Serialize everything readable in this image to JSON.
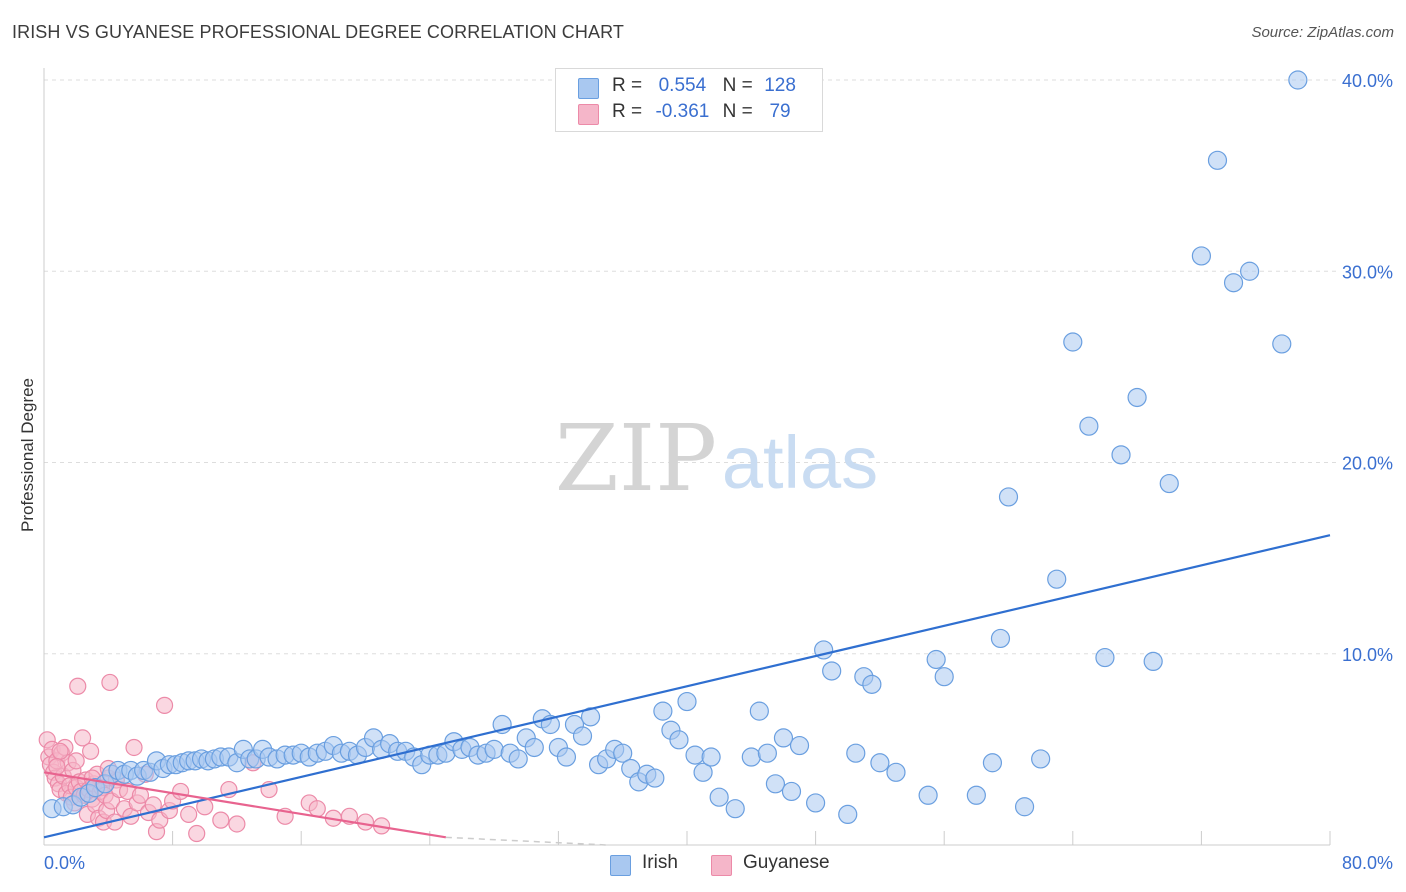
{
  "title": "IRISH VS GUYANESE PROFESSIONAL DEGREE CORRELATION CHART",
  "source": "Source: ZipAtlas.com",
  "watermark": {
    "zip": "ZIP",
    "atlas": "atlas"
  },
  "colors": {
    "irish_fill": "#a9c8f0",
    "irish_stroke": "#6a9fe0",
    "irish_line": "#2f6fd0",
    "guyanese_fill": "#f5b6c9",
    "guyanese_stroke": "#ec8aa8",
    "guyanese_line": "#e8638f",
    "grid": "#dddddd",
    "tick_label": "#3a6fd0"
  },
  "legend": {
    "rows": [
      {
        "r_label": "R =",
        "r_value": "0.554",
        "n_label": "N =",
        "n_value": "128"
      },
      {
        "r_label": "R =",
        "r_value": "-0.361",
        "n_label": "N =",
        "n_value": "79"
      }
    ]
  },
  "bottom_legend": {
    "items": [
      "Irish",
      "Guyanese"
    ]
  },
  "chart_data": {
    "type": "scatter",
    "title": "IRISH VS GUYANESE PROFESSIONAL DEGREE CORRELATION CHART",
    "xlabel": "",
    "ylabel": "Professional Degree",
    "xlim": [
      0,
      80
    ],
    "ylim": [
      0,
      40
    ],
    "x_tick_labels": [
      "0.0%",
      "80.0%"
    ],
    "y_ticks": [
      10,
      20,
      30,
      40
    ],
    "y_tick_labels": [
      "10.0%",
      "20.0%",
      "30.0%",
      "40.0%"
    ],
    "grid": true,
    "legend_position": "top-center",
    "series": [
      {
        "name": "Irish",
        "r": 0.554,
        "n": 128,
        "trend": {
          "x": [
            0,
            80
          ],
          "y": [
            0.4,
            16.2
          ]
        },
        "points": [
          [
            0.5,
            1.9
          ],
          [
            1.2,
            2.0
          ],
          [
            1.8,
            2.1
          ],
          [
            2.3,
            2.5
          ],
          [
            2.8,
            2.7
          ],
          [
            3.2,
            3.0
          ],
          [
            3.8,
            3.2
          ],
          [
            4.2,
            3.7
          ],
          [
            4.6,
            3.9
          ],
          [
            5.0,
            3.7
          ],
          [
            5.4,
            3.9
          ],
          [
            5.8,
            3.6
          ],
          [
            6.2,
            3.9
          ],
          [
            6.6,
            3.8
          ],
          [
            7.0,
            4.4
          ],
          [
            7.4,
            4.0
          ],
          [
            7.8,
            4.2
          ],
          [
            8.2,
            4.2
          ],
          [
            8.6,
            4.3
          ],
          [
            9.0,
            4.4
          ],
          [
            9.4,
            4.4
          ],
          [
            9.8,
            4.5
          ],
          [
            10.2,
            4.4
          ],
          [
            10.6,
            4.5
          ],
          [
            11.0,
            4.6
          ],
          [
            11.5,
            4.6
          ],
          [
            12.0,
            4.3
          ],
          [
            12.4,
            5.0
          ],
          [
            12.8,
            4.5
          ],
          [
            13.2,
            4.5
          ],
          [
            13.6,
            5.0
          ],
          [
            14.0,
            4.6
          ],
          [
            14.5,
            4.5
          ],
          [
            15.0,
            4.7
          ],
          [
            15.5,
            4.7
          ],
          [
            16.0,
            4.8
          ],
          [
            16.5,
            4.6
          ],
          [
            17.0,
            4.8
          ],
          [
            17.5,
            4.9
          ],
          [
            18.0,
            5.2
          ],
          [
            18.5,
            4.8
          ],
          [
            19.0,
            4.9
          ],
          [
            19.5,
            4.7
          ],
          [
            20.0,
            5.1
          ],
          [
            20.5,
            5.6
          ],
          [
            21.0,
            5.0
          ],
          [
            21.5,
            5.3
          ],
          [
            22.0,
            4.9
          ],
          [
            22.5,
            4.9
          ],
          [
            23.0,
            4.6
          ],
          [
            23.5,
            4.2
          ],
          [
            24.0,
            4.7
          ],
          [
            24.5,
            4.7
          ],
          [
            25.0,
            4.8
          ],
          [
            25.5,
            5.4
          ],
          [
            26.0,
            5.0
          ],
          [
            26.5,
            5.1
          ],
          [
            27.0,
            4.7
          ],
          [
            27.5,
            4.8
          ],
          [
            28.0,
            5.0
          ],
          [
            28.5,
            6.3
          ],
          [
            29.0,
            4.8
          ],
          [
            29.5,
            4.5
          ],
          [
            30.0,
            5.6
          ],
          [
            30.5,
            5.1
          ],
          [
            31.0,
            6.6
          ],
          [
            31.5,
            6.3
          ],
          [
            32.0,
            5.1
          ],
          [
            32.5,
            4.6
          ],
          [
            33.0,
            6.3
          ],
          [
            33.5,
            5.7
          ],
          [
            34.0,
            6.7
          ],
          [
            34.5,
            4.2
          ],
          [
            35.0,
            4.5
          ],
          [
            35.5,
            5.0
          ],
          [
            36.0,
            4.8
          ],
          [
            36.5,
            4.0
          ],
          [
            37.0,
            3.3
          ],
          [
            37.5,
            3.7
          ],
          [
            38.0,
            3.5
          ],
          [
            38.5,
            7.0
          ],
          [
            39.0,
            6.0
          ],
          [
            39.5,
            5.5
          ],
          [
            40.0,
            7.5
          ],
          [
            40.5,
            4.7
          ],
          [
            41.0,
            3.8
          ],
          [
            41.5,
            4.6
          ],
          [
            42.0,
            2.5
          ],
          [
            43.0,
            1.9
          ],
          [
            44.0,
            4.6
          ],
          [
            44.5,
            7.0
          ],
          [
            45.0,
            4.8
          ],
          [
            45.5,
            3.2
          ],
          [
            46.0,
            5.6
          ],
          [
            46.5,
            2.8
          ],
          [
            47.0,
            5.2
          ],
          [
            48.0,
            2.2
          ],
          [
            48.5,
            10.2
          ],
          [
            49.0,
            9.1
          ],
          [
            50.0,
            1.6
          ],
          [
            50.5,
            4.8
          ],
          [
            51.0,
            8.8
          ],
          [
            51.5,
            8.4
          ],
          [
            52.0,
            4.3
          ],
          [
            53.0,
            3.8
          ],
          [
            55.0,
            2.6
          ],
          [
            55.5,
            9.7
          ],
          [
            56.0,
            8.8
          ],
          [
            58.0,
            2.6
          ],
          [
            59.0,
            4.3
          ],
          [
            59.5,
            10.8
          ],
          [
            60.0,
            18.2
          ],
          [
            61.0,
            2.0
          ],
          [
            62.0,
            4.5
          ],
          [
            63.0,
            13.9
          ],
          [
            64.0,
            26.3
          ],
          [
            65.0,
            21.9
          ],
          [
            66.0,
            9.8
          ],
          [
            67.0,
            20.4
          ],
          [
            68.0,
            23.4
          ],
          [
            69.0,
            9.6
          ],
          [
            70.0,
            18.9
          ],
          [
            72.0,
            30.8
          ],
          [
            73.0,
            35.8
          ],
          [
            74.0,
            29.4
          ],
          [
            75.0,
            30.0
          ],
          [
            77.0,
            26.2
          ],
          [
            78.0,
            40.0
          ]
        ]
      },
      {
        "name": "Guyanese",
        "r": -0.361,
        "n": 79,
        "trend": {
          "x": [
            0,
            25
          ],
          "y": [
            3.8,
            0.4
          ]
        },
        "points": [
          [
            0.2,
            5.5
          ],
          [
            0.3,
            4.6
          ],
          [
            0.4,
            4.2
          ],
          [
            0.5,
            5.0
          ],
          [
            0.6,
            3.8
          ],
          [
            0.7,
            3.5
          ],
          [
            0.8,
            4.4
          ],
          [
            0.9,
            3.2
          ],
          [
            1.0,
            2.9
          ],
          [
            1.1,
            4.8
          ],
          [
            1.2,
            3.6
          ],
          [
            1.3,
            5.1
          ],
          [
            1.4,
            2.7
          ],
          [
            1.5,
            4.3
          ],
          [
            1.6,
            3.1
          ],
          [
            1.7,
            2.5
          ],
          [
            1.8,
            3.9
          ],
          [
            1.9,
            2.2
          ],
          [
            2.0,
            3.0
          ],
          [
            2.1,
            8.3
          ],
          [
            2.2,
            3.3
          ],
          [
            2.3,
            2.8
          ],
          [
            2.4,
            5.6
          ],
          [
            2.5,
            2.6
          ],
          [
            2.6,
            3.4
          ],
          [
            2.7,
            1.6
          ],
          [
            2.8,
            2.9
          ],
          [
            2.9,
            4.9
          ],
          [
            3.0,
            2.4
          ],
          [
            3.1,
            3.2
          ],
          [
            3.2,
            2.1
          ],
          [
            3.3,
            3.7
          ],
          [
            3.4,
            1.4
          ],
          [
            3.5,
            2.8
          ],
          [
            3.6,
            3.0
          ],
          [
            3.7,
            1.2
          ],
          [
            3.8,
            2.6
          ],
          [
            3.9,
            1.8
          ],
          [
            4.0,
            3.5
          ],
          [
            4.1,
            8.5
          ],
          [
            4.2,
            2.3
          ],
          [
            4.4,
            1.2
          ],
          [
            4.5,
            3.4
          ],
          [
            4.7,
            2.9
          ],
          [
            5.0,
            1.9
          ],
          [
            5.2,
            2.8
          ],
          [
            5.4,
            1.5
          ],
          [
            5.6,
            5.1
          ],
          [
            5.8,
            2.2
          ],
          [
            6.0,
            2.6
          ],
          [
            6.3,
            3.7
          ],
          [
            6.5,
            1.7
          ],
          [
            6.8,
            2.1
          ],
          [
            7.0,
            0.7
          ],
          [
            7.2,
            1.3
          ],
          [
            7.5,
            7.3
          ],
          [
            7.8,
            1.8
          ],
          [
            8.0,
            2.3
          ],
          [
            8.5,
            2.8
          ],
          [
            9.0,
            1.6
          ],
          [
            9.5,
            0.6
          ],
          [
            10.0,
            2.0
          ],
          [
            11.0,
            1.3
          ],
          [
            11.5,
            2.9
          ],
          [
            12.0,
            1.1
          ],
          [
            13.0,
            4.3
          ],
          [
            14.0,
            2.9
          ],
          [
            15.0,
            1.5
          ],
          [
            16.5,
            2.2
          ],
          [
            17.0,
            1.9
          ],
          [
            18.0,
            1.4
          ],
          [
            19.0,
            1.5
          ],
          [
            20.0,
            1.2
          ],
          [
            21.0,
            1.0
          ],
          [
            2.0,
            4.4
          ],
          [
            1.0,
            4.9
          ],
          [
            3.0,
            3.5
          ],
          [
            4.0,
            4.0
          ],
          [
            0.8,
            4.1
          ]
        ]
      }
    ]
  }
}
